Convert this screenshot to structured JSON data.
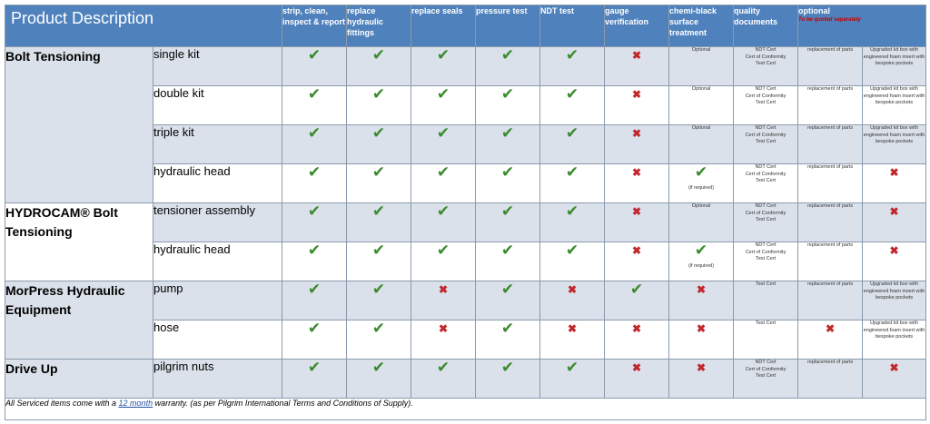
{
  "header": {
    "product_description": "Product Description",
    "columns": [
      "strip, clean, inspect & report",
      "replace hydraulic fittings",
      "replace seals",
      "pressure test",
      "NDT test",
      "gauge verification",
      "chemi-black surface treatment",
      "quality documents",
      "optional"
    ],
    "optional_note": "To be quoted separately"
  },
  "groups": [
    {
      "name": "Bolt Tensioning"
    },
    {
      "name": "HYDROCAM® Bolt Tensioning"
    },
    {
      "name": "MorPress Hydraulic Equipment"
    },
    {
      "name": "Drive Up"
    }
  ],
  "rows": [
    {
      "item": "single kit",
      "chemi_text": "Optional",
      "docs": [
        "NDT Cert",
        "Cert of Conformity",
        "Test Cert"
      ],
      "opt1": "replacement of parts",
      "opt2": "Upgraded kit box with engineered foam insert with bespoke pockets"
    },
    {
      "item": "double kit",
      "chemi_text": "Optional",
      "docs": [
        "NDT Cert",
        "Cert of Conformity",
        "Test Cert"
      ],
      "opt1": "replacement of parts",
      "opt2": "Upgraded kit box with engineered foam insert with bespoke pockets"
    },
    {
      "item": "triple kit",
      "chemi_text": "Optional",
      "docs": [
        "NDT Cert",
        "Cert of Conformity",
        "Test Cert"
      ],
      "opt1": "replacement of parts",
      "opt2": "Upgraded kit box with engineered foam insert with bespoke pockets"
    },
    {
      "item": "hydraulic head",
      "chemi_note": "(if required)",
      "docs": [
        "NDT Cert",
        "Cert of Conformity",
        "Test Cert"
      ],
      "opt1": "replacement of parts"
    },
    {
      "item": "tensioner assembly",
      "chemi_text": "Optional",
      "docs": [
        "NDT Cert",
        "Cert of Conformity",
        "Test Cert"
      ],
      "opt1": "replacement of parts"
    },
    {
      "item": "hydraulic head",
      "chemi_note": "(if required)",
      "docs": [
        "NDT Cert",
        "Cert of Conformity",
        "Test Cert"
      ],
      "opt1": "replacement of parts"
    },
    {
      "item": "pump",
      "docs": [
        "Test Cert"
      ],
      "opt1": "replacement of parts",
      "opt2": "Upgraded kit box with engineered foam insert with bespoke pockets"
    },
    {
      "item": "hose",
      "docs": [
        "Test Cert"
      ],
      "opt2": "Upgraded kit box with engineered foam insert with bespoke pockets"
    },
    {
      "item": "pilgrim nuts",
      "docs": [
        "NDT Cert",
        "Cert of Conformity",
        "Test Cert"
      ],
      "opt1": "replacement of parts"
    }
  ],
  "marks": {
    "tick": "✔",
    "cross": "✖"
  },
  "footer": {
    "pre": "All Serviced items come with a ",
    "link": "12 month",
    "post": " warranty. (as per Pilgrim International Terms and Conditions of Supply)."
  },
  "colors": {
    "header_bg": "#4f81bd",
    "tick": "#3a8a2e",
    "cross": "#c0282d",
    "row_shade": "#dbe1ea"
  }
}
